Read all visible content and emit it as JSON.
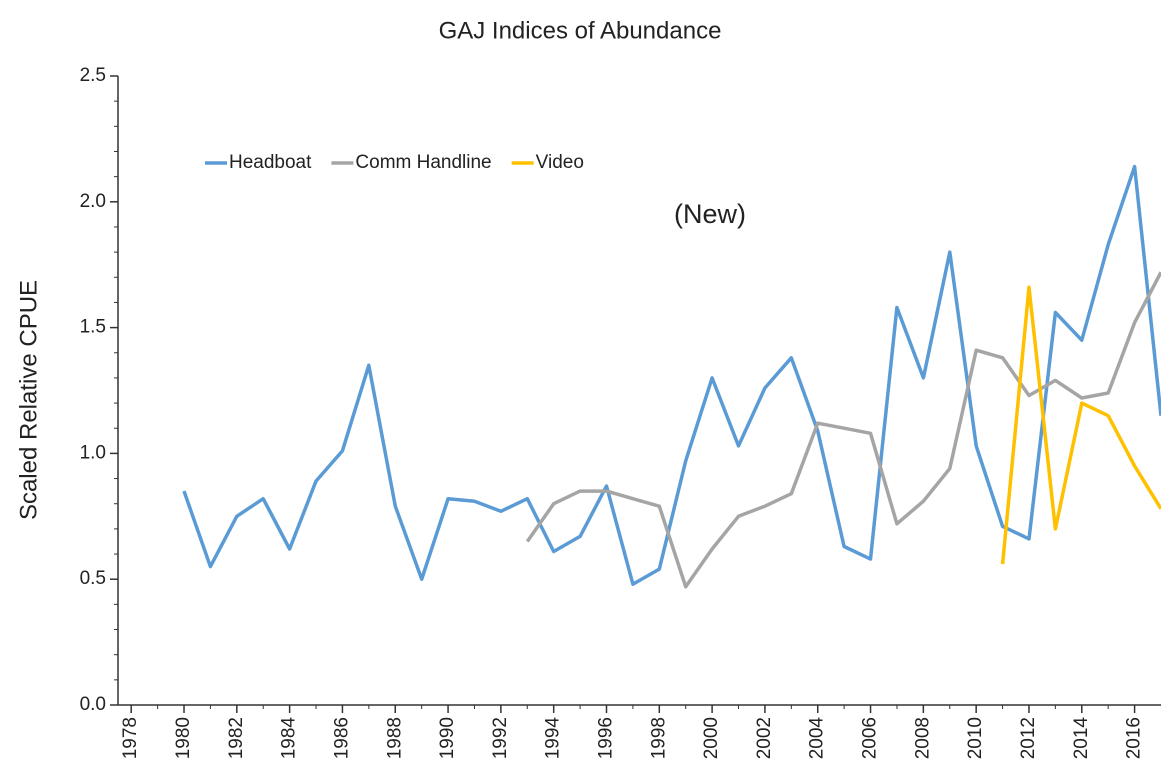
{
  "chart_data": {
    "type": "line",
    "title": "GAJ Indices of Abundance",
    "y_label": "Scaled Relative CPUE",
    "annotation": "(New)",
    "x": [
      1980,
      1981,
      1982,
      1983,
      1984,
      1985,
      1986,
      1987,
      1988,
      1989,
      1990,
      1991,
      1992,
      1993,
      1994,
      1995,
      1996,
      1997,
      1998,
      1999,
      2000,
      2001,
      2002,
      2003,
      2004,
      2005,
      2006,
      2007,
      2008,
      2009,
      2010,
      2011,
      2012,
      2013,
      2014,
      2015,
      2016,
      2017
    ],
    "series": [
      {
        "name": "Headboat",
        "color": "#5b9bd5",
        "values": [
          0.85,
          0.55,
          0.75,
          0.82,
          0.62,
          0.89,
          1.01,
          1.35,
          0.79,
          0.5,
          0.82,
          0.81,
          0.77,
          0.82,
          0.61,
          0.67,
          0.87,
          0.48,
          0.54,
          0.97,
          1.3,
          1.03,
          1.26,
          1.38,
          1.09,
          0.63,
          0.58,
          1.58,
          1.3,
          1.8,
          1.03,
          0.71,
          0.66,
          1.56,
          1.45,
          1.83,
          2.14,
          1.15
        ]
      },
      {
        "name": "Comm Handline",
        "color": "#a5a5a5",
        "values": [
          null,
          null,
          null,
          null,
          null,
          null,
          null,
          null,
          null,
          null,
          null,
          null,
          null,
          0.65,
          0.8,
          0.85,
          0.85,
          0.82,
          0.79,
          0.47,
          0.62,
          0.75,
          0.79,
          0.84,
          1.12,
          1.1,
          1.08,
          0.72,
          0.81,
          0.94,
          1.41,
          1.38,
          1.23,
          1.29,
          1.22,
          1.24,
          1.52,
          1.72
        ]
      },
      {
        "name": "Video",
        "color": "#ffc000",
        "values": [
          null,
          null,
          null,
          null,
          null,
          null,
          null,
          null,
          null,
          null,
          null,
          null,
          null,
          null,
          null,
          null,
          null,
          null,
          null,
          null,
          null,
          null,
          null,
          null,
          null,
          null,
          null,
          null,
          null,
          null,
          null,
          0.56,
          1.66,
          0.7,
          1.2,
          1.15,
          0.95,
          0.78
        ]
      }
    ],
    "xlim": [
      1977.5,
      2017
    ],
    "xticks": [
      1978,
      1980,
      1982,
      1984,
      1986,
      1988,
      1990,
      1992,
      1994,
      1996,
      1998,
      2000,
      2002,
      2004,
      2006,
      2008,
      2010,
      2012,
      2014,
      2016
    ],
    "ylim": [
      0,
      2.5
    ],
    "yticks": [
      {
        "value": 0,
        "label": "0.0"
      },
      {
        "value": 0.5,
        "label": "0.5"
      },
      {
        "value": 1,
        "label": "1.0"
      },
      {
        "value": 1.5,
        "label": "1.5"
      },
      {
        "value": 2,
        "label": "2.0"
      },
      {
        "value": 2.5,
        "label": "2.5"
      }
    ],
    "legend": "upper left",
    "grid": false
  }
}
